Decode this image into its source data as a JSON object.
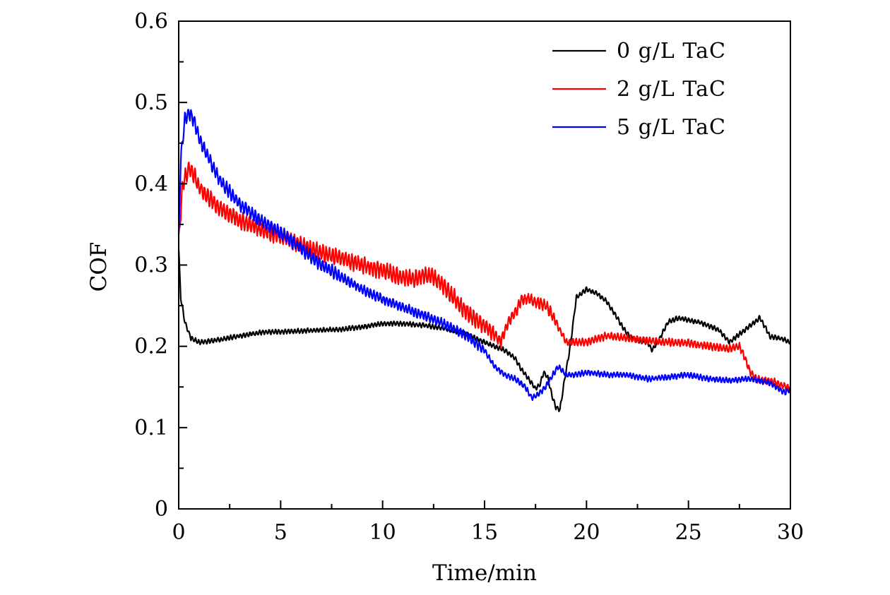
{
  "chart_data": {
    "type": "line",
    "title": "",
    "xlabel": "Time/min",
    "ylabel": "COF",
    "xlim": [
      0,
      30
    ],
    "ylim": [
      0,
      0.6
    ],
    "x_ticks": [
      "0",
      "5",
      "10",
      "15",
      "20",
      "25",
      "30"
    ],
    "y_ticks": [
      "0",
      "0.1",
      "0.2",
      "0.3",
      "0.4",
      "0.5",
      "0.6"
    ],
    "grid": false,
    "legend_position": "top-right",
    "series": [
      {
        "name": "0 g/L TaC",
        "color": "#000000",
        "points": [
          [
            0,
            0.32
          ],
          [
            0.1,
            0.26
          ],
          [
            0.3,
            0.23
          ],
          [
            0.6,
            0.21
          ],
          [
            1,
            0.205
          ],
          [
            2,
            0.208
          ],
          [
            3,
            0.213
          ],
          [
            4,
            0.217
          ],
          [
            5,
            0.218
          ],
          [
            6,
            0.219
          ],
          [
            7,
            0.22
          ],
          [
            8,
            0.221
          ],
          [
            9,
            0.224
          ],
          [
            10,
            0.228
          ],
          [
            11,
            0.228
          ],
          [
            12,
            0.226
          ],
          [
            13,
            0.222
          ],
          [
            14,
            0.216
          ],
          [
            15,
            0.205
          ],
          [
            15.5,
            0.2
          ],
          [
            16,
            0.195
          ],
          [
            16.5,
            0.185
          ],
          [
            16.8,
            0.172
          ],
          [
            17,
            0.165
          ],
          [
            17.3,
            0.155
          ],
          [
            17.5,
            0.148
          ],
          [
            17.7,
            0.152
          ],
          [
            17.9,
            0.168
          ],
          [
            18.1,
            0.162
          ],
          [
            18.3,
            0.14
          ],
          [
            18.5,
            0.125
          ],
          [
            18.7,
            0.122
          ],
          [
            18.9,
            0.155
          ],
          [
            19.2,
            0.2
          ],
          [
            19.5,
            0.26
          ],
          [
            20,
            0.27
          ],
          [
            20.5,
            0.265
          ],
          [
            21,
            0.255
          ],
          [
            21.5,
            0.235
          ],
          [
            22,
            0.215
          ],
          [
            22.5,
            0.207
          ],
          [
            23,
            0.205
          ],
          [
            23.2,
            0.195
          ],
          [
            23.5,
            0.205
          ],
          [
            24,
            0.23
          ],
          [
            24.5,
            0.235
          ],
          [
            25,
            0.232
          ],
          [
            25.5,
            0.23
          ],
          [
            26,
            0.225
          ],
          [
            26.5,
            0.22
          ],
          [
            27,
            0.205
          ],
          [
            27.5,
            0.215
          ],
          [
            28,
            0.225
          ],
          [
            28.5,
            0.235
          ],
          [
            28.8,
            0.222
          ],
          [
            29,
            0.212
          ],
          [
            29.5,
            0.21
          ],
          [
            30,
            0.205
          ]
        ]
      },
      {
        "name": "2 g/L TaC",
        "color": "#ff0000",
        "points": [
          [
            0,
            0.33
          ],
          [
            0.2,
            0.4
          ],
          [
            0.5,
            0.42
          ],
          [
            0.8,
            0.41
          ],
          [
            1,
            0.395
          ],
          [
            2,
            0.37
          ],
          [
            3,
            0.355
          ],
          [
            4,
            0.345
          ],
          [
            5,
            0.335
          ],
          [
            6,
            0.325
          ],
          [
            7,
            0.315
          ],
          [
            8,
            0.308
          ],
          [
            9,
            0.3
          ],
          [
            10,
            0.293
          ],
          [
            11,
            0.285
          ],
          [
            11.5,
            0.283
          ],
          [
            12,
            0.288
          ],
          [
            12.5,
            0.285
          ],
          [
            13,
            0.275
          ],
          [
            13.5,
            0.26
          ],
          [
            14,
            0.245
          ],
          [
            14.5,
            0.235
          ],
          [
            15,
            0.225
          ],
          [
            15.5,
            0.215
          ],
          [
            15.8,
            0.205
          ],
          [
            16,
            0.22
          ],
          [
            16.3,
            0.235
          ],
          [
            16.6,
            0.245
          ],
          [
            16.8,
            0.258
          ],
          [
            17.2,
            0.258
          ],
          [
            17.5,
            0.255
          ],
          [
            18,
            0.25
          ],
          [
            18.3,
            0.24
          ],
          [
            18.6,
            0.225
          ],
          [
            19,
            0.205
          ],
          [
            20,
            0.205
          ],
          [
            21,
            0.213
          ],
          [
            22,
            0.21
          ],
          [
            23,
            0.207
          ],
          [
            24,
            0.205
          ],
          [
            25,
            0.204
          ],
          [
            26,
            0.2
          ],
          [
            27,
            0.197
          ],
          [
            27.5,
            0.2
          ],
          [
            27.7,
            0.19
          ],
          [
            28,
            0.17
          ],
          [
            28.3,
            0.16
          ],
          [
            28.7,
            0.158
          ],
          [
            29,
            0.158
          ],
          [
            30,
            0.148
          ]
        ]
      },
      {
        "name": "5 g/L TaC",
        "color": "#0000ff",
        "points": [
          [
            0,
            0.33
          ],
          [
            0.1,
            0.43
          ],
          [
            0.3,
            0.48
          ],
          [
            0.5,
            0.488
          ],
          [
            0.8,
            0.475
          ],
          [
            1,
            0.455
          ],
          [
            1.5,
            0.43
          ],
          [
            2,
            0.405
          ],
          [
            2.5,
            0.39
          ],
          [
            3,
            0.375
          ],
          [
            4,
            0.355
          ],
          [
            5,
            0.34
          ],
          [
            6,
            0.32
          ],
          [
            7,
            0.3
          ],
          [
            8,
            0.285
          ],
          [
            9,
            0.27
          ],
          [
            10,
            0.258
          ],
          [
            11,
            0.248
          ],
          [
            12,
            0.238
          ],
          [
            13,
            0.228
          ],
          [
            14,
            0.215
          ],
          [
            14.5,
            0.205
          ],
          [
            15,
            0.195
          ],
          [
            15.5,
            0.175
          ],
          [
            16,
            0.165
          ],
          [
            16.5,
            0.16
          ],
          [
            17,
            0.15
          ],
          [
            17.3,
            0.137
          ],
          [
            17.6,
            0.14
          ],
          [
            18,
            0.15
          ],
          [
            18.3,
            0.163
          ],
          [
            18.6,
            0.175
          ],
          [
            19,
            0.165
          ],
          [
            19.5,
            0.165
          ],
          [
            20,
            0.168
          ],
          [
            21,
            0.165
          ],
          [
            22,
            0.165
          ],
          [
            23,
            0.16
          ],
          [
            24,
            0.162
          ],
          [
            25,
            0.165
          ],
          [
            26,
            0.16
          ],
          [
            27,
            0.158
          ],
          [
            28,
            0.16
          ],
          [
            29,
            0.155
          ],
          [
            29.7,
            0.143
          ],
          [
            30,
            0.147
          ]
        ]
      }
    ]
  }
}
